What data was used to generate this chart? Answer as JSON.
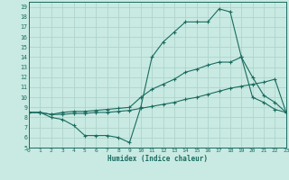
{
  "xlabel": "Humidex (Indice chaleur)",
  "background_color": "#c8eae2",
  "grid_color": "#aed4cc",
  "line_color": "#1a6b60",
  "xlim": [
    0,
    23
  ],
  "ylim": [
    5,
    19.5
  ],
  "xticks": [
    0,
    1,
    2,
    3,
    4,
    5,
    6,
    7,
    8,
    9,
    10,
    11,
    12,
    13,
    14,
    15,
    16,
    17,
    18,
    19,
    20,
    21,
    22,
    23
  ],
  "yticks": [
    5,
    6,
    7,
    8,
    9,
    10,
    11,
    12,
    13,
    14,
    15,
    16,
    17,
    18,
    19
  ],
  "curve1_x": [
    0,
    1,
    2,
    3,
    4,
    5,
    6,
    7,
    8,
    9,
    10,
    11,
    12,
    13,
    14,
    15,
    16,
    17,
    18,
    19,
    20,
    21,
    22,
    23
  ],
  "curve1_y": [
    8.5,
    8.5,
    8.0,
    7.8,
    7.2,
    6.2,
    6.2,
    6.2,
    6.0,
    5.5,
    9.0,
    14.0,
    15.5,
    16.5,
    17.5,
    17.5,
    17.5,
    18.8,
    18.5,
    14.0,
    10.0,
    9.5,
    8.8,
    8.5
  ],
  "curve2_x": [
    0,
    1,
    2,
    3,
    4,
    5,
    6,
    7,
    8,
    9,
    10,
    11,
    12,
    13,
    14,
    15,
    16,
    17,
    18,
    19,
    20,
    21,
    22,
    23
  ],
  "curve2_y": [
    8.5,
    8.5,
    8.3,
    8.5,
    8.6,
    8.6,
    8.7,
    8.8,
    8.9,
    9.0,
    10.0,
    10.8,
    11.3,
    11.8,
    12.5,
    12.8,
    13.2,
    13.5,
    13.5,
    14.0,
    12.0,
    10.2,
    9.5,
    8.5
  ],
  "curve3_x": [
    0,
    1,
    2,
    3,
    4,
    5,
    6,
    7,
    8,
    9,
    10,
    11,
    12,
    13,
    14,
    15,
    16,
    17,
    18,
    19,
    20,
    21,
    22,
    23
  ],
  "curve3_y": [
    8.5,
    8.5,
    8.3,
    8.3,
    8.4,
    8.4,
    8.5,
    8.5,
    8.6,
    8.7,
    8.9,
    9.1,
    9.3,
    9.5,
    9.8,
    10.0,
    10.3,
    10.6,
    10.9,
    11.1,
    11.3,
    11.5,
    11.8,
    8.5
  ]
}
